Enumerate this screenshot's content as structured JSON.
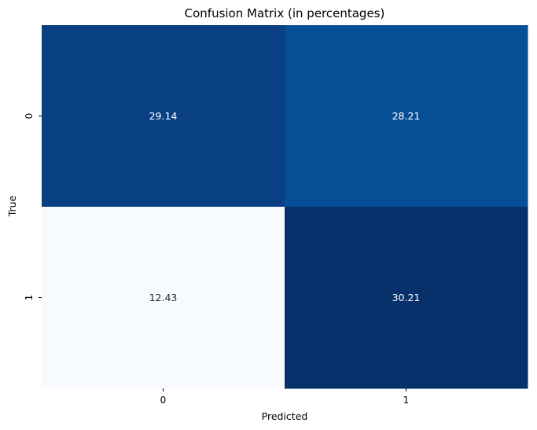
{
  "chart_data": {
    "type": "heatmap",
    "title": "Confusion Matrix (in percentages)",
    "xlabel": "Predicted",
    "ylabel": "True",
    "x_categories": [
      "0",
      "1"
    ],
    "y_categories": [
      "0",
      "1"
    ],
    "values": [
      [
        29.14,
        28.21
      ],
      [
        12.43,
        30.21
      ]
    ],
    "value_labels": [
      [
        "29.14",
        "28.21"
      ],
      [
        "12.43",
        "30.21"
      ]
    ],
    "colormap": "Blues",
    "color_low": "#f7fbff",
    "color_high": "#08306b",
    "colorbar": false,
    "grid": false
  }
}
